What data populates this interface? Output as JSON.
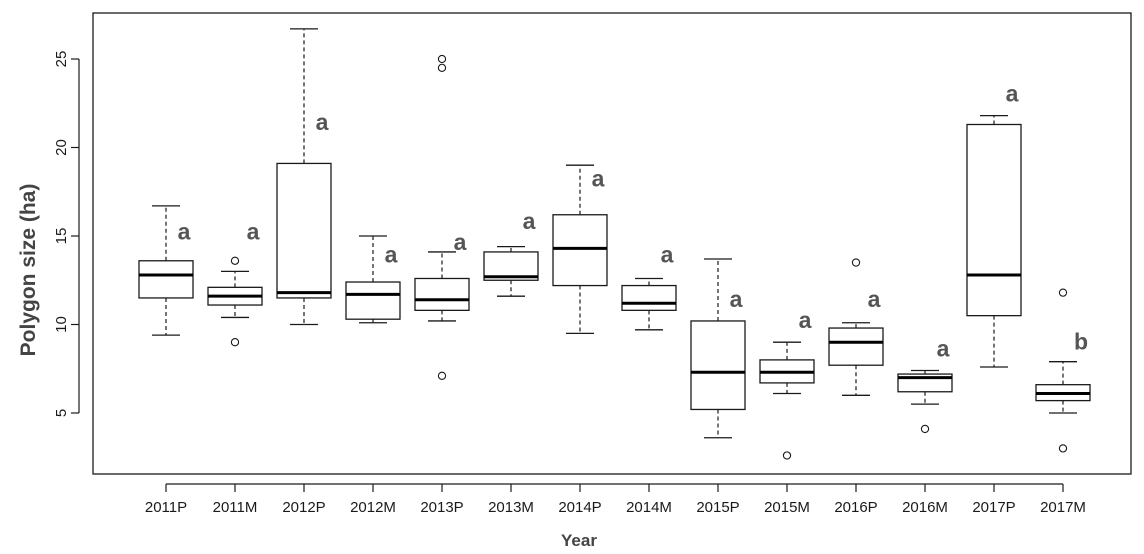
{
  "chart_data": {
    "type": "boxplot",
    "xlabel": "Year",
    "ylabel": "Polygon size (ha)",
    "ylim": [
      2,
      27
    ],
    "yticks": [
      5,
      10,
      15,
      20,
      25
    ],
    "grid": false,
    "categories": [
      "2011P",
      "2011M",
      "2012P",
      "2012M",
      "2013P",
      "2013M",
      "2014P",
      "2014M",
      "2015P",
      "2015M",
      "2016P",
      "2016M",
      "2017P",
      "2017M"
    ],
    "boxes": [
      {
        "category": "2011P",
        "whisker_low": 9.4,
        "q1": 11.5,
        "median": 12.8,
        "q3": 13.6,
        "whisker_high": 16.7,
        "outliers": [],
        "letter": "a",
        "letter_y": 14.8
      },
      {
        "category": "2011M",
        "whisker_low": 10.4,
        "q1": 11.1,
        "median": 11.6,
        "q3": 12.1,
        "whisker_high": 13.0,
        "outliers": [
          13.6,
          9.0
        ],
        "letter": "a",
        "letter_y": 14.8
      },
      {
        "category": "2012P",
        "whisker_low": 10.0,
        "q1": 11.5,
        "median": 11.8,
        "q3": 19.1,
        "whisker_high": 26.7,
        "outliers": [],
        "letter": "a",
        "letter_y": 21.0
      },
      {
        "category": "2012M",
        "whisker_low": 10.1,
        "q1": 10.3,
        "median": 11.7,
        "q3": 12.4,
        "whisker_high": 15.0,
        "outliers": [],
        "letter": "a",
        "letter_y": 13.5
      },
      {
        "category": "2013P",
        "whisker_low": 10.2,
        "q1": 10.8,
        "median": 11.4,
        "q3": 12.6,
        "whisker_high": 14.1,
        "outliers": [
          25.0,
          24.5,
          7.1
        ],
        "letter": "a",
        "letter_y": 14.2
      },
      {
        "category": "2013M",
        "whisker_low": 11.6,
        "q1": 12.5,
        "median": 12.7,
        "q3": 14.1,
        "whisker_high": 14.4,
        "outliers": [],
        "letter": "a",
        "letter_y": 15.4
      },
      {
        "category": "2014P",
        "whisker_low": 9.5,
        "q1": 12.2,
        "median": 14.3,
        "q3": 16.2,
        "whisker_high": 19.0,
        "outliers": [],
        "letter": "a",
        "letter_y": 17.8
      },
      {
        "category": "2014M",
        "whisker_low": 9.7,
        "q1": 10.8,
        "median": 11.2,
        "q3": 12.2,
        "whisker_high": 12.6,
        "outliers": [],
        "letter": "a",
        "letter_y": 13.5
      },
      {
        "category": "2015P",
        "whisker_low": 3.6,
        "q1": 5.2,
        "median": 7.3,
        "q3": 10.2,
        "whisker_high": 13.7,
        "outliers": [],
        "letter": "a",
        "letter_y": 11.0
      },
      {
        "category": "2015M",
        "whisker_low": 6.1,
        "q1": 6.7,
        "median": 7.3,
        "q3": 8.0,
        "whisker_high": 9.0,
        "outliers": [
          2.6
        ],
        "letter": "a",
        "letter_y": 9.8
      },
      {
        "category": "2016P",
        "whisker_low": 6.0,
        "q1": 7.7,
        "median": 9.0,
        "q3": 9.8,
        "whisker_high": 10.1,
        "outliers": [
          13.5
        ],
        "letter": "a",
        "letter_y": 11.0
      },
      {
        "category": "2016M",
        "whisker_low": 5.5,
        "q1": 6.2,
        "median": 7.0,
        "q3": 7.2,
        "whisker_high": 7.4,
        "outliers": [
          4.1
        ],
        "letter": "a",
        "letter_y": 8.2
      },
      {
        "category": "2017P",
        "whisker_low": 7.6,
        "q1": 10.5,
        "median": 12.8,
        "q3": 21.3,
        "whisker_high": 21.8,
        "outliers": [],
        "letter": "a",
        "letter_y": 22.6
      },
      {
        "category": "2017M",
        "whisker_low": 5.0,
        "q1": 5.7,
        "median": 6.1,
        "q3": 6.6,
        "whisker_high": 7.9,
        "outliers": [
          11.8,
          3.0
        ],
        "letter": "b",
        "letter_y": 8.6
      }
    ]
  }
}
